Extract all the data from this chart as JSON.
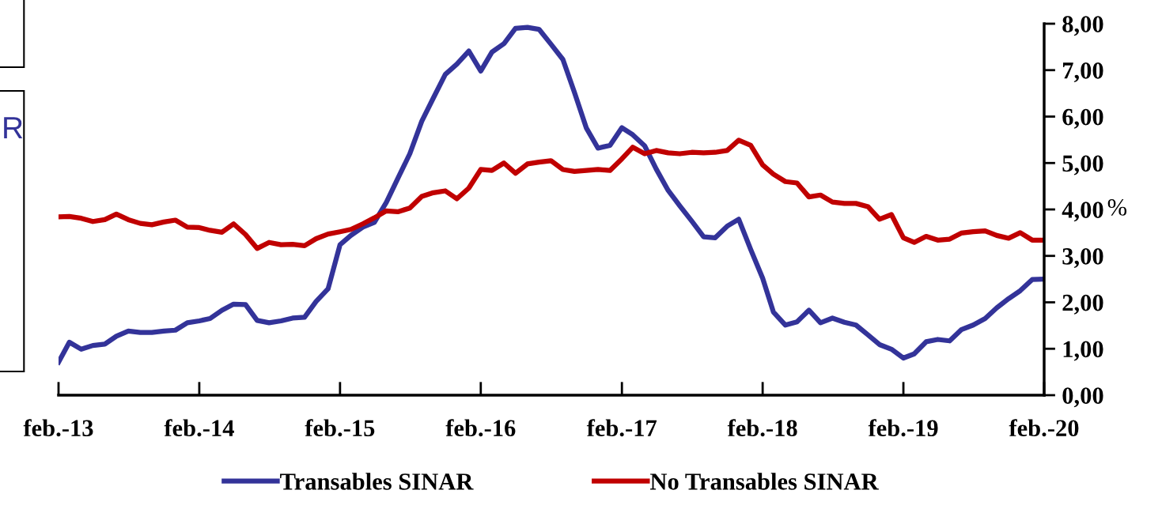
{
  "chart_data": {
    "type": "line",
    "x": [
      "2013-02",
      "2013-03",
      "2013-04",
      "2013-05",
      "2013-06",
      "2013-07",
      "2013-08",
      "2013-09",
      "2013-10",
      "2013-11",
      "2013-12",
      "2014-01",
      "2014-02",
      "2014-03",
      "2014-04",
      "2014-05",
      "2014-06",
      "2014-07",
      "2014-08",
      "2014-09",
      "2014-10",
      "2014-11",
      "2014-12",
      "2015-01",
      "2015-02",
      "2015-03",
      "2015-04",
      "2015-05",
      "2015-06",
      "2015-07",
      "2015-08",
      "2015-09",
      "2015-10",
      "2015-11",
      "2015-12",
      "2016-01",
      "2016-02",
      "2016-03",
      "2016-04",
      "2016-05",
      "2016-06",
      "2016-07",
      "2016-08",
      "2016-09",
      "2016-10",
      "2016-11",
      "2016-12",
      "2017-01",
      "2017-02",
      "2017-03",
      "2017-04",
      "2017-05",
      "2017-06",
      "2017-07",
      "2017-08",
      "2017-09",
      "2017-10",
      "2017-11",
      "2017-12",
      "2018-01",
      "2018-02",
      "2018-03",
      "2018-04",
      "2018-05",
      "2018-06",
      "2018-07",
      "2018-08",
      "2018-09",
      "2018-10",
      "2018-11",
      "2018-12",
      "2019-01",
      "2019-02",
      "2019-03",
      "2019-04",
      "2019-05",
      "2019-06",
      "2019-07",
      "2019-08",
      "2019-09",
      "2019-10",
      "2019-11",
      "2019-12",
      "2020-01",
      "2020-02"
    ],
    "series": [
      {
        "name": "Transables SINAR",
        "color": "#333399",
        "values": [
          0.71,
          1.14,
          0.99,
          1.07,
          1.1,
          1.27,
          1.38,
          1.35,
          1.35,
          1.38,
          1.4,
          1.56,
          1.6,
          1.65,
          1.83,
          1.96,
          1.95,
          1.61,
          1.56,
          1.6,
          1.66,
          1.68,
          2.02,
          2.29,
          3.24,
          3.44,
          3.62,
          3.72,
          4.15,
          4.67,
          5.2,
          5.9,
          6.4,
          6.91,
          7.13,
          7.41,
          6.98,
          7.39,
          7.57,
          7.9,
          7.92,
          7.88,
          7.56,
          7.23,
          6.52,
          5.75,
          5.32,
          5.38,
          5.76,
          5.61,
          5.37,
          4.87,
          4.41,
          4.08,
          3.75,
          3.41,
          3.39,
          3.64,
          3.79,
          3.14,
          2.52,
          1.79,
          1.51,
          1.58,
          1.83,
          1.56,
          1.66,
          1.57,
          1.51,
          1.3,
          1.09,
          0.99,
          0.8,
          0.89,
          1.15,
          1.2,
          1.17,
          1.41,
          1.51,
          1.65,
          1.88,
          2.08,
          2.25,
          2.49,
          2.5
        ]
      },
      {
        "name": "No Transables SINAR",
        "color": "#c00000",
        "values": [
          3.84,
          3.85,
          3.81,
          3.74,
          3.78,
          3.9,
          3.78,
          3.7,
          3.67,
          3.73,
          3.77,
          3.62,
          3.61,
          3.55,
          3.51,
          3.69,
          3.46,
          3.16,
          3.29,
          3.24,
          3.25,
          3.22,
          3.37,
          3.47,
          3.52,
          3.57,
          3.69,
          3.82,
          3.97,
          3.95,
          4.03,
          4.28,
          4.36,
          4.4,
          4.23,
          4.46,
          4.86,
          4.84,
          5.0,
          4.78,
          4.98,
          5.02,
          5.05,
          4.86,
          4.82,
          4.84,
          4.86,
          4.84,
          5.09,
          5.34,
          5.2,
          5.27,
          5.22,
          5.2,
          5.23,
          5.22,
          5.23,
          5.27,
          5.49,
          5.38,
          4.96,
          4.76,
          4.6,
          4.57,
          4.27,
          4.31,
          4.16,
          4.13,
          4.13,
          4.06,
          3.79,
          3.89,
          3.39,
          3.29,
          3.42,
          3.34,
          3.36,
          3.49,
          3.52,
          3.54,
          3.44,
          3.38,
          3.5,
          3.34,
          3.34
        ]
      }
    ],
    "y2label": "%",
    "ylim": [
      0,
      8
    ],
    "yticks": [
      {
        "value": 0,
        "label": "0,00"
      },
      {
        "value": 1,
        "label": "1,00"
      },
      {
        "value": 2,
        "label": "2,00"
      },
      {
        "value": 3,
        "label": "3,00"
      },
      {
        "value": 4,
        "label": "4,00"
      },
      {
        "value": 5,
        "label": "5,00"
      },
      {
        "value": 6,
        "label": "6,00"
      },
      {
        "value": 7,
        "label": "7,00"
      },
      {
        "value": 8,
        "label": "8,00"
      }
    ],
    "xlim": [
      "2013-02",
      "2020-02"
    ],
    "xticks": [
      {
        "value": "2013-02",
        "label": "feb.-13"
      },
      {
        "value": "2014-02",
        "label": "feb.-14"
      },
      {
        "value": "2015-02",
        "label": "feb.-15"
      },
      {
        "value": "2016-02",
        "label": "feb.-16"
      },
      {
        "value": "2017-02",
        "label": "feb.-17"
      },
      {
        "value": "2018-02",
        "label": "feb.-18"
      },
      {
        "value": "2019-02",
        "label": "feb.-19"
      },
      {
        "value": "2020-02",
        "label": "feb.-20"
      }
    ],
    "annotations": [
      "R"
    ],
    "legend": "bottom",
    "grid": false,
    "marker": "none",
    "line_style": "solid"
  }
}
